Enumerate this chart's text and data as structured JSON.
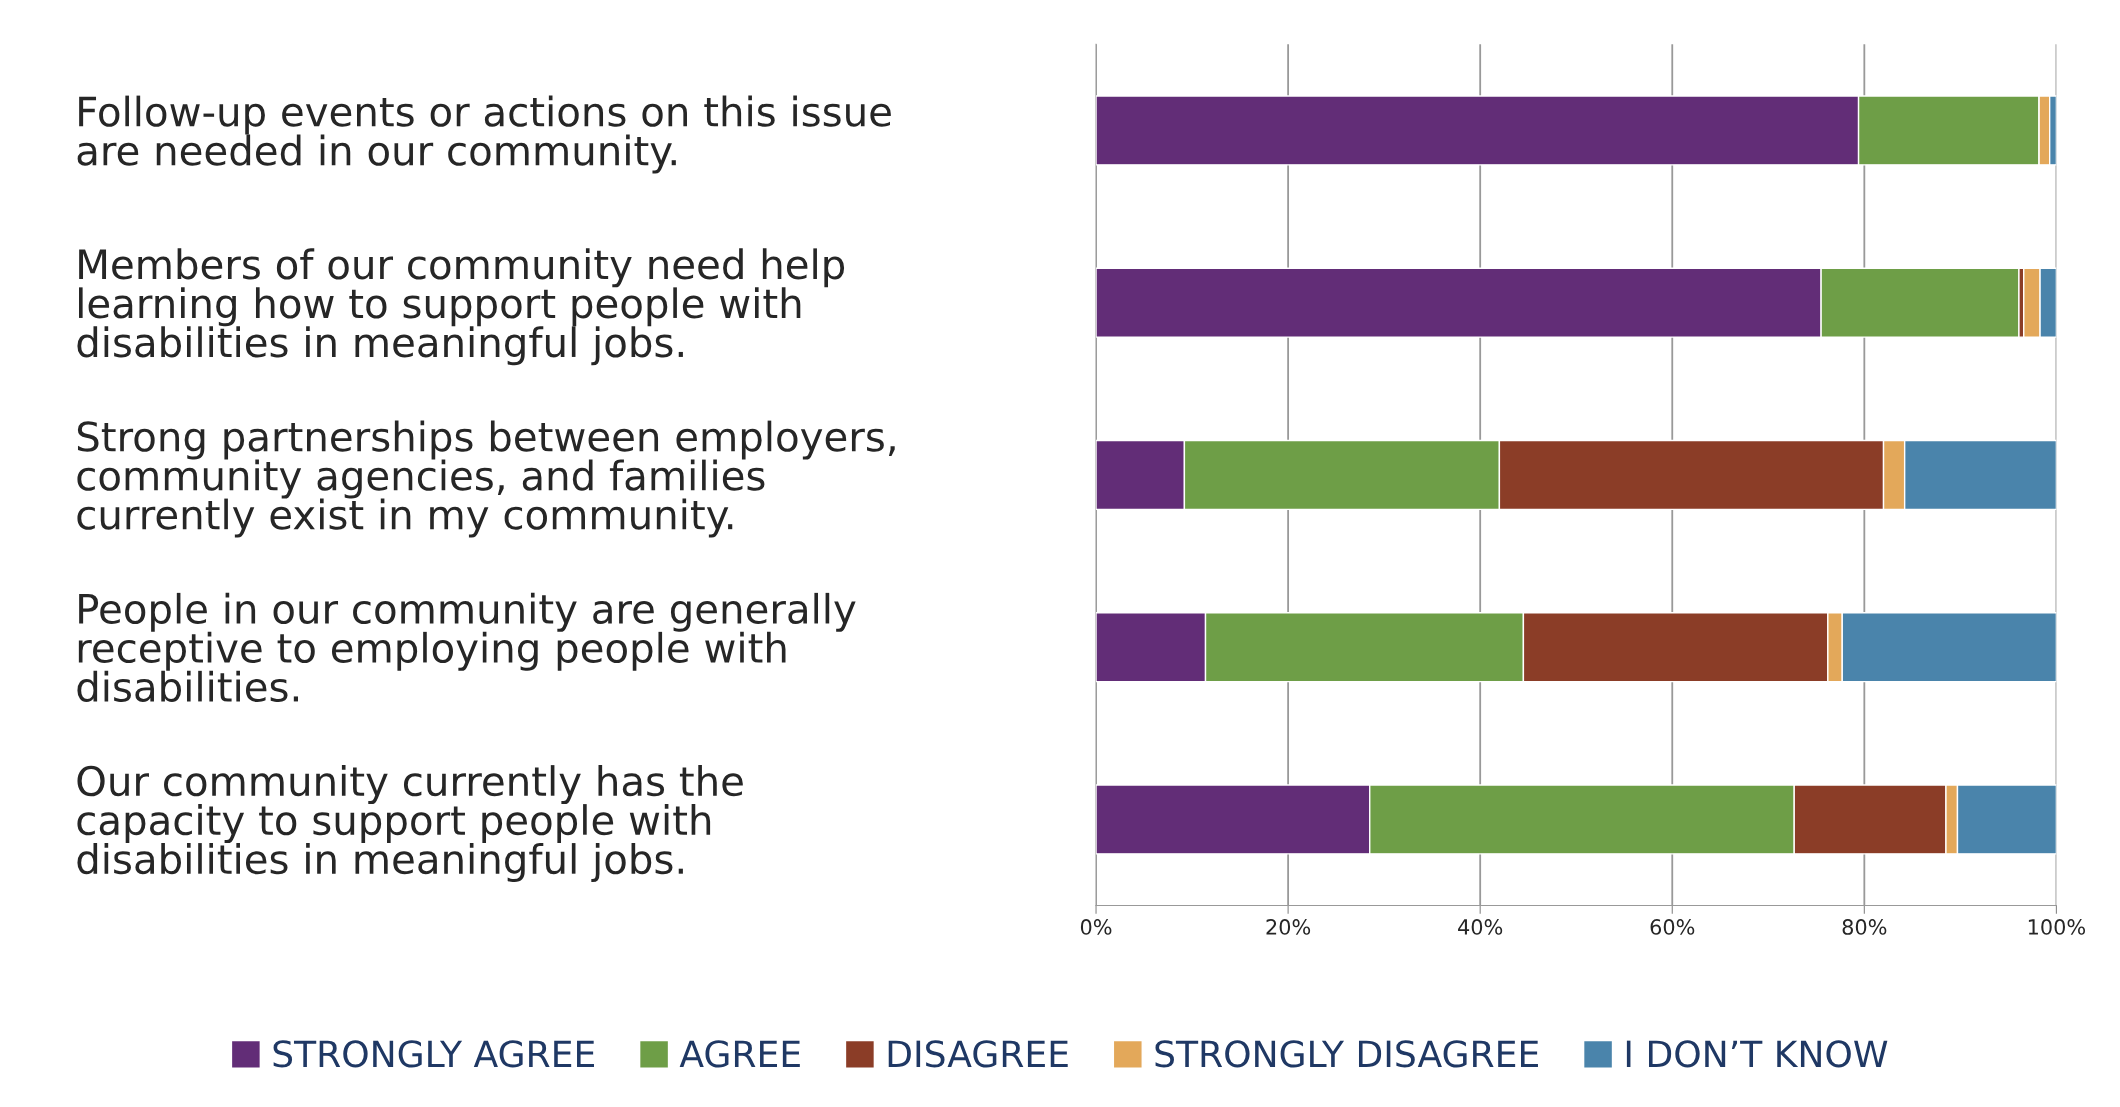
{
  "chart_data": {
    "type": "bar",
    "orientation": "horizontal",
    "stacked": true,
    "categories": [
      "Follow-up events or actions on this issue\nare needed in our community.",
      "Members of our community need help\nlearning how to support people with\ndisabilities in meaningful jobs.",
      "Strong partnerships between employers,\ncommunity agencies, and families\ncurrently exist in my community.",
      "People in our community are generally\nreceptive to employing people with\ndisabilities.",
      "Our community currently has the\ncapacity to support people with\ndisabilities in meaningful jobs."
    ],
    "series": [
      {
        "name": "STRONGLY AGREE",
        "color": "#622d77",
        "values": [
          79.4,
          75.5,
          9.2,
          11.4,
          28.5
        ]
      },
      {
        "name": "AGREE",
        "color": "#6e9e47",
        "values": [
          18.8,
          20.6,
          32.8,
          33.1,
          44.2
        ]
      },
      {
        "name": "DISAGREE",
        "color": "#8b3d27",
        "values": [
          0,
          0.5,
          40.0,
          31.7,
          15.8
        ]
      },
      {
        "name": "STRONGLY DISAGREE",
        "color": "#e3a85a",
        "values": [
          1.1,
          1.7,
          2.2,
          1.5,
          1.2
        ]
      },
      {
        "name": "I DON’T KNOW",
        "color": "#4a84ab",
        "values": [
          0.7,
          1.7,
          15.8,
          22.3,
          10.3
        ]
      }
    ],
    "xlim": [
      0,
      100
    ],
    "xticks": [
      {
        "value": 0,
        "label": "0%"
      },
      {
        "value": 20,
        "label": "20%"
      },
      {
        "value": 40,
        "label": "40%"
      },
      {
        "value": 60,
        "label": "60%"
      },
      {
        "value": 80,
        "label": "80%"
      },
      {
        "value": 100,
        "label": "100%"
      }
    ],
    "grid": "x",
    "legend": "bottom"
  }
}
